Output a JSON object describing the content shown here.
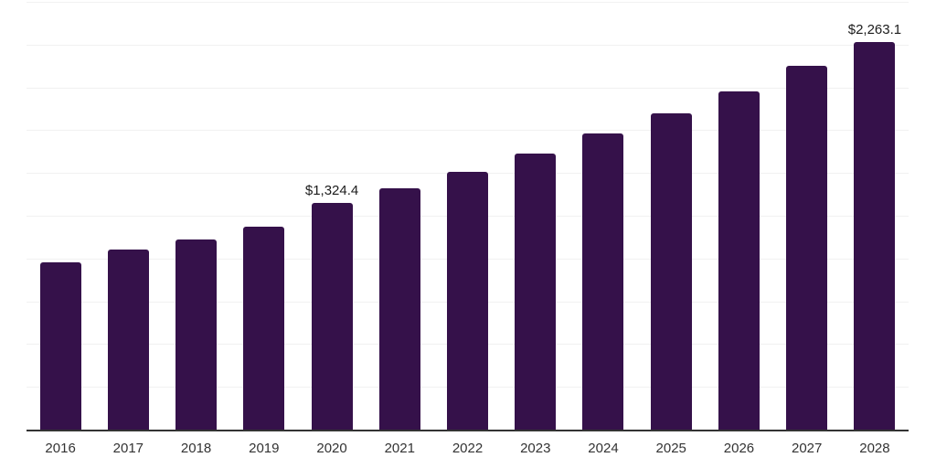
{
  "chart_data": {
    "type": "bar",
    "title": "",
    "xlabel": "",
    "ylabel": "",
    "categories": [
      "2016",
      "2017",
      "2018",
      "2019",
      "2020",
      "2021",
      "2022",
      "2023",
      "2024",
      "2025",
      "2026",
      "2027",
      "2028"
    ],
    "values": [
      979,
      1051,
      1113,
      1184,
      1324.4,
      1410,
      1508,
      1612,
      1732,
      1847,
      1976,
      2124,
      2263.1
    ],
    "bar_labels": [
      "",
      "",
      "",
      "",
      "$1,324.4",
      "",
      "",
      "",
      "",
      "",
      "",
      "",
      "$2,263.1"
    ],
    "ylim": [
      0,
      2500
    ],
    "gridline_step": 250,
    "grid": true,
    "legend": false,
    "colors": {
      "bar": "#35114a",
      "gridline": "#f1f1f1",
      "axis": "#333333",
      "year_label": "#333333",
      "value_label": "#1c1c1c"
    }
  }
}
